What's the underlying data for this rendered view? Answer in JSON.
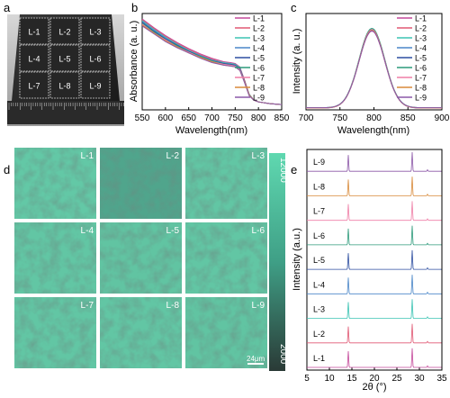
{
  "figure": {
    "panel_letters": [
      "a",
      "b",
      "c",
      "d",
      "e"
    ]
  },
  "photo": {
    "labels": [
      "L-1",
      "L-2",
      "L-3",
      "L-4",
      "L-5",
      "L-6",
      "L-7",
      "L-8",
      "L-9"
    ]
  },
  "colors": {
    "series": [
      "#c4489a",
      "#e05873",
      "#3bc3b3",
      "#4a86c8",
      "#2d4ea0",
      "#2c9a7a",
      "#ef7fa7",
      "#d88a3a",
      "#8c58a8"
    ]
  },
  "chart_data": [
    {
      "panel": "b",
      "type": "line",
      "xlabel": "Wavelength(nm)",
      "ylabel": "Absorbance (a. u.)",
      "xlim": [
        550,
        850
      ],
      "xticks": [
        550,
        600,
        650,
        700,
        750,
        800,
        850
      ],
      "legend": [
        "L-1",
        "L-2",
        "L-3",
        "L-4",
        "L-5",
        "L-6",
        "L-7",
        "L-8",
        "L-9"
      ],
      "x": [
        550,
        575,
        600,
        625,
        650,
        675,
        700,
        725,
        740,
        750,
        760,
        770,
        780,
        790,
        800,
        825,
        850
      ],
      "series": [
        {
          "name": "L-1",
          "values": [
            1.0,
            0.9,
            0.81,
            0.73,
            0.66,
            0.6,
            0.55,
            0.51,
            0.5,
            0.49,
            0.45,
            0.3,
            0.14,
            0.07,
            0.05,
            0.03,
            0.02
          ]
        },
        {
          "name": "L-2",
          "values": [
            0.99,
            0.89,
            0.8,
            0.72,
            0.65,
            0.59,
            0.54,
            0.5,
            0.49,
            0.48,
            0.44,
            0.3,
            0.14,
            0.07,
            0.05,
            0.03,
            0.02
          ]
        },
        {
          "name": "L-3",
          "values": [
            0.98,
            0.88,
            0.79,
            0.71,
            0.64,
            0.58,
            0.53,
            0.5,
            0.49,
            0.48,
            0.44,
            0.29,
            0.14,
            0.07,
            0.05,
            0.03,
            0.02
          ]
        },
        {
          "name": "L-4",
          "values": [
            0.97,
            0.87,
            0.78,
            0.7,
            0.63,
            0.58,
            0.53,
            0.49,
            0.48,
            0.47,
            0.43,
            0.29,
            0.13,
            0.07,
            0.05,
            0.03,
            0.02
          ]
        },
        {
          "name": "L-5",
          "values": [
            0.96,
            0.86,
            0.77,
            0.7,
            0.63,
            0.57,
            0.52,
            0.49,
            0.48,
            0.47,
            0.43,
            0.29,
            0.13,
            0.07,
            0.05,
            0.03,
            0.02
          ]
        },
        {
          "name": "L-6",
          "values": [
            0.95,
            0.85,
            0.76,
            0.69,
            0.62,
            0.57,
            0.52,
            0.48,
            0.47,
            0.46,
            0.42,
            0.28,
            0.13,
            0.07,
            0.05,
            0.03,
            0.02
          ]
        },
        {
          "name": "L-7",
          "values": [
            0.94,
            0.84,
            0.76,
            0.68,
            0.62,
            0.56,
            0.51,
            0.48,
            0.47,
            0.46,
            0.42,
            0.28,
            0.13,
            0.07,
            0.05,
            0.03,
            0.02
          ]
        },
        {
          "name": "L-8",
          "values": [
            0.93,
            0.84,
            0.75,
            0.68,
            0.61,
            0.56,
            0.51,
            0.47,
            0.46,
            0.45,
            0.41,
            0.28,
            0.13,
            0.07,
            0.05,
            0.03,
            0.02
          ]
        },
        {
          "name": "L-9",
          "values": [
            0.92,
            0.83,
            0.74,
            0.67,
            0.61,
            0.55,
            0.5,
            0.47,
            0.46,
            0.45,
            0.41,
            0.27,
            0.12,
            0.07,
            0.05,
            0.03,
            0.02
          ]
        }
      ]
    },
    {
      "panel": "c",
      "type": "line",
      "xlabel": "Wavelength(nm)",
      "ylabel": "Intensity (a. u.)",
      "xlim": [
        700,
        900
      ],
      "xticks": [
        700,
        750,
        800,
        850,
        900
      ],
      "legend": [
        "L-1",
        "L-2",
        "L-3",
        "L-4",
        "L-5",
        "L-6",
        "L-7",
        "L-8",
        "L-9"
      ],
      "peak": {
        "center": 797,
        "width": 19
      },
      "series": [
        {
          "name": "L-1",
          "values": [
            0.96
          ]
        },
        {
          "name": "L-2",
          "values": [
            0.97
          ]
        },
        {
          "name": "L-3",
          "values": [
            0.99
          ]
        },
        {
          "name": "L-4",
          "values": [
            0.98
          ]
        },
        {
          "name": "L-5",
          "values": [
            0.97
          ]
        },
        {
          "name": "L-6",
          "values": [
            0.99
          ]
        },
        {
          "name": "L-7",
          "values": [
            0.98
          ]
        },
        {
          "name": "L-8",
          "values": [
            0.97
          ]
        },
        {
          "name": "L-9",
          "values": [
            0.96
          ]
        }
      ]
    },
    {
      "panel": "d",
      "type": "heatmap",
      "tiles": [
        "L-1",
        "L-2",
        "L-3",
        "L-4",
        "L-5",
        "L-6",
        "L-7",
        "L-8",
        "L-9"
      ],
      "colorbar": {
        "max_label": "12000",
        "min_label": "2000",
        "high_color": "#5fd8b0",
        "low_color": "#2a3a36"
      },
      "scalebar": "24μm",
      "tile_mean": [
        0.82,
        0.5,
        0.8,
        0.8,
        0.78,
        0.8,
        0.8,
        0.8,
        0.78
      ]
    },
    {
      "panel": "e",
      "type": "line",
      "xlabel": "2θ (°)",
      "ylabel": "Intensity (a.u.)",
      "xlim": [
        5,
        35
      ],
      "xticks": [
        5,
        10,
        15,
        20,
        25,
        30,
        35
      ],
      "stack_labels": [
        "L-9",
        "L-8",
        "L-7",
        "L-6",
        "L-5",
        "L-4",
        "L-3",
        "L-2",
        "L-1"
      ],
      "peaks": [
        {
          "two_theta": 14.2,
          "rel_intensity": 0.85
        },
        {
          "two_theta": 28.4,
          "rel_intensity": 1.0
        },
        {
          "two_theta": 31.8,
          "rel_intensity": 0.08
        }
      ]
    }
  ]
}
